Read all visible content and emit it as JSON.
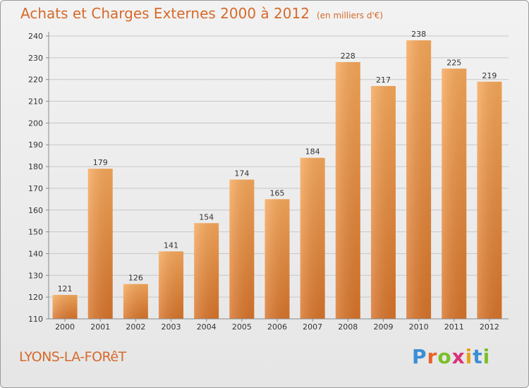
{
  "header": {
    "title": "Achats et Charges Externes 2000 à 2012",
    "subtitle": "(en milliers d'€)"
  },
  "footer": {
    "city": "LYONS-LA-FORêT",
    "logo": {
      "text": "Proxiti",
      "letter_colors": [
        "#3a8fd6",
        "#e8632a",
        "#7bbf2a",
        "#d9327a",
        "#e8a21b",
        "#3a8fd6",
        "#7bbf2a"
      ]
    }
  },
  "colors": {
    "bar_top": "#f7a85a",
    "bar_bottom": "#d8742a",
    "grid": "#c7c7c7",
    "axis": "#8a8a8a",
    "text": "#333333",
    "accent": "#d66a2a"
  },
  "chart_data": {
    "type": "bar",
    "categories": [
      "2000",
      "2001",
      "2002",
      "2003",
      "2004",
      "2005",
      "2006",
      "2007",
      "2008",
      "2009",
      "2010",
      "2011",
      "2012"
    ],
    "values": [
      121,
      179,
      126,
      141,
      154,
      174,
      165,
      184,
      228,
      217,
      238,
      225,
      219
    ],
    "data_labels": [
      "121",
      "179",
      "126",
      "141",
      "154",
      "174",
      "165",
      "184",
      "228",
      "217",
      "238",
      "225",
      "219"
    ],
    "y_ticks": [
      110,
      120,
      130,
      140,
      150,
      160,
      170,
      180,
      190,
      200,
      210,
      220,
      230,
      240
    ],
    "ylim": [
      110,
      240
    ],
    "title": "Achats et Charges Externes 2000 à 2012",
    "xlabel": "",
    "ylabel": "",
    "grid": true,
    "legend": "none"
  }
}
